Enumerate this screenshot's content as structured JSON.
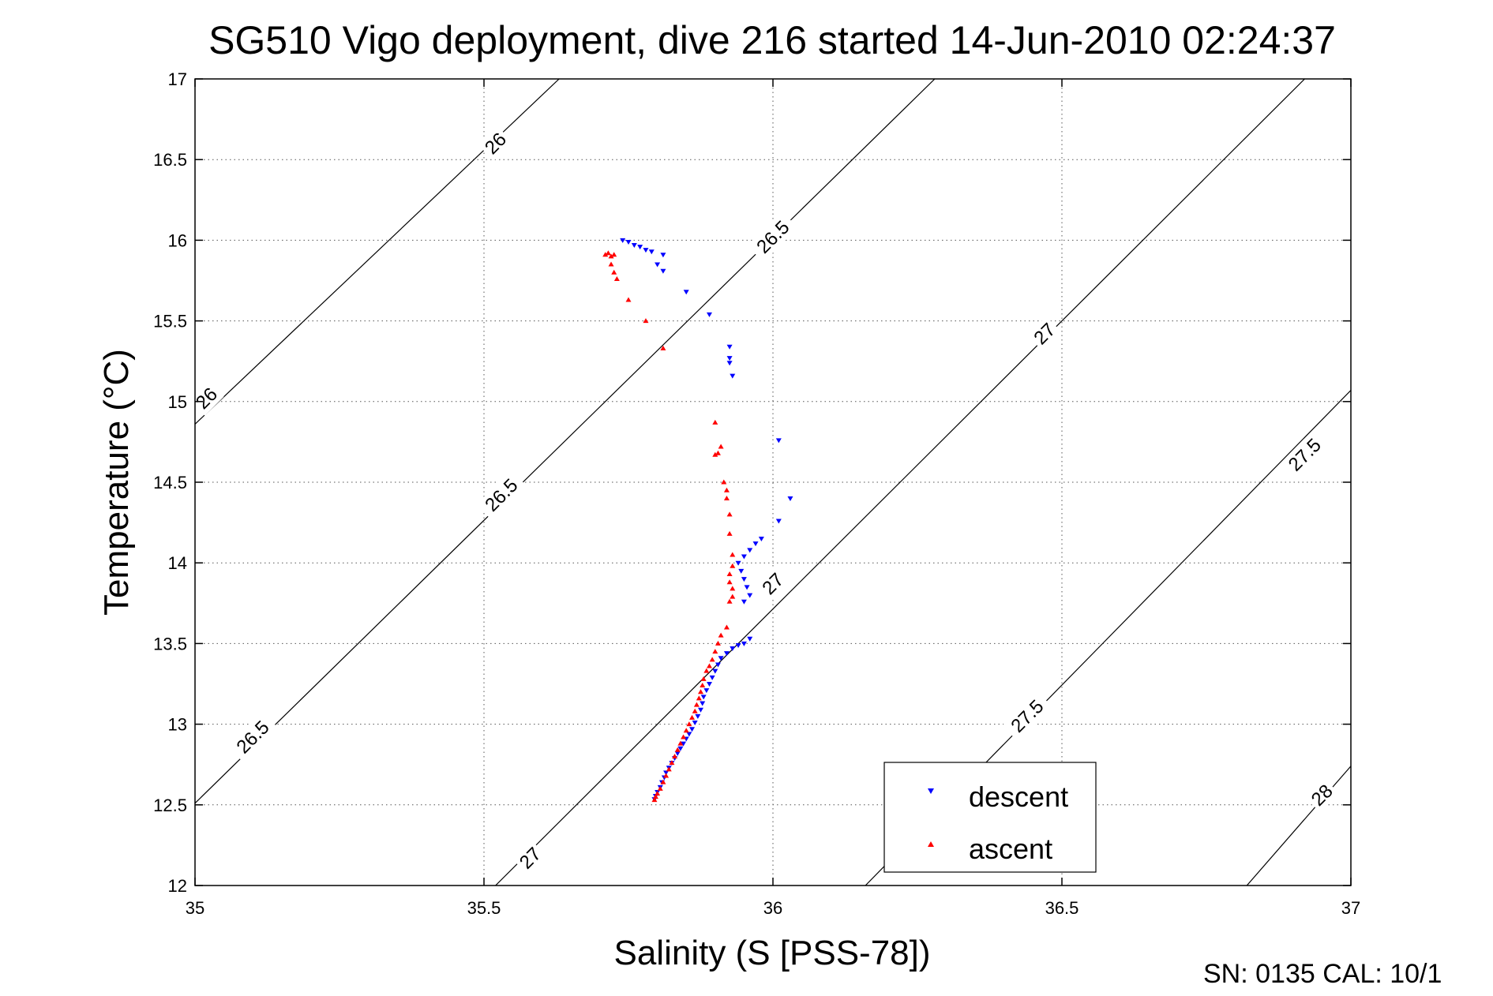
{
  "chart_data": {
    "type": "scatter",
    "title": "SG510 Vigo deployment, dive 216 started 14-Jun-2010 02:24:37",
    "xlabel": "Salinity (S [PSS-78])",
    "ylabel": "Temperature (°C)",
    "xlim": [
      35,
      37
    ],
    "ylim": [
      12,
      17
    ],
    "grid": true,
    "legend_position": "bottom-right",
    "xticks": [
      35,
      35.5,
      36,
      36.5,
      37
    ],
    "xtick_labels": [
      "35",
      "35.5",
      "36",
      "36.5",
      "37"
    ],
    "yticks": [
      12,
      12.5,
      13,
      13.5,
      14,
      14.5,
      15,
      15.5,
      16,
      16.5,
      17
    ],
    "ytick_labels": [
      "12",
      "12.5",
      "13",
      "13.5",
      "14",
      "14.5",
      "15",
      "15.5",
      "16",
      "16.5",
      "17"
    ],
    "density_contours": [
      {
        "level": 26,
        "lines": [
          [
            35.0,
            14.86,
            35.63,
            17.0
          ]
        ]
      },
      {
        "level": 26.5,
        "lines": [
          [
            35.0,
            12.51,
            36.28,
            17.0
          ]
        ]
      },
      {
        "level": 27,
        "lines": [
          [
            35.52,
            12.0,
            36.92,
            17.0
          ]
        ]
      },
      {
        "level": 27.5,
        "lines": [
          [
            36.16,
            12.0,
            37.0,
            15.07
          ]
        ]
      },
      {
        "level": 28,
        "lines": [
          [
            36.82,
            12.0,
            37.0,
            12.74
          ]
        ]
      }
    ],
    "contour_labels": [
      {
        "text": "26",
        "s": 35.02,
        "t": 15.02
      },
      {
        "text": "26",
        "s": 35.52,
        "t": 16.6
      },
      {
        "text": "26.5",
        "s": 35.1,
        "t": 12.92
      },
      {
        "text": "26.5",
        "s": 35.53,
        "t": 14.42
      },
      {
        "text": "26.5",
        "s": 36.0,
        "t": 16.02
      },
      {
        "text": "27",
        "s": 35.58,
        "t": 12.17
      },
      {
        "text": "27",
        "s": 36.0,
        "t": 13.87
      },
      {
        "text": "27",
        "s": 36.47,
        "t": 15.42
      },
      {
        "text": "27.5",
        "s": 36.44,
        "t": 13.05
      },
      {
        "text": "27.5",
        "s": 36.92,
        "t": 14.67
      },
      {
        "text": "28",
        "s": 36.95,
        "t": 12.56
      }
    ],
    "series": [
      {
        "name": "descent",
        "color": "#0000ff",
        "marker": "triangle-down",
        "points": [
          [
            35.74,
            16.0
          ],
          [
            35.75,
            15.99
          ],
          [
            35.76,
            15.97
          ],
          [
            35.77,
            15.96
          ],
          [
            35.78,
            15.94
          ],
          [
            35.79,
            15.93
          ],
          [
            35.81,
            15.91
          ],
          [
            35.8,
            15.85
          ],
          [
            35.81,
            15.81
          ],
          [
            35.85,
            15.68
          ],
          [
            35.89,
            15.54
          ],
          [
            35.925,
            15.34
          ],
          [
            35.925,
            15.27
          ],
          [
            35.925,
            15.24
          ],
          [
            35.93,
            15.16
          ],
          [
            36.01,
            14.76
          ],
          [
            36.03,
            14.4
          ],
          [
            36.01,
            14.26
          ],
          [
            35.98,
            14.15
          ],
          [
            35.97,
            14.12
          ],
          [
            35.96,
            14.08
          ],
          [
            35.95,
            14.04
          ],
          [
            35.94,
            14.0
          ],
          [
            35.945,
            13.95
          ],
          [
            35.95,
            13.9
          ],
          [
            35.955,
            13.85
          ],
          [
            35.96,
            13.8
          ],
          [
            35.95,
            13.76
          ],
          [
            35.96,
            13.53
          ],
          [
            35.95,
            13.5
          ],
          [
            35.94,
            13.49
          ],
          [
            35.93,
            13.47
          ],
          [
            35.92,
            13.44
          ],
          [
            35.91,
            13.41
          ],
          [
            35.905,
            13.37
          ],
          [
            35.9,
            13.33
          ],
          [
            35.895,
            13.29
          ],
          [
            35.89,
            13.25
          ],
          [
            35.885,
            13.21
          ],
          [
            35.88,
            13.17
          ],
          [
            35.878,
            13.13
          ],
          [
            35.875,
            13.09
          ],
          [
            35.87,
            13.05
          ],
          [
            35.865,
            13.01
          ],
          [
            35.86,
            12.97
          ],
          [
            35.855,
            12.94
          ],
          [
            35.85,
            12.91
          ],
          [
            35.845,
            12.88
          ],
          [
            35.84,
            12.85
          ],
          [
            35.835,
            12.82
          ],
          [
            35.83,
            12.79
          ],
          [
            35.825,
            12.76
          ],
          [
            35.82,
            12.73
          ],
          [
            35.815,
            12.7
          ],
          [
            35.812,
            12.67
          ],
          [
            35.808,
            12.64
          ],
          [
            35.805,
            12.61
          ],
          [
            35.8,
            12.58
          ],
          [
            35.797,
            12.555
          ],
          [
            35.795,
            12.535
          ]
        ]
      },
      {
        "name": "ascent",
        "color": "#ff0000",
        "marker": "triangle-up",
        "points": [
          [
            35.71,
            15.91
          ],
          [
            35.72,
            15.9
          ],
          [
            35.715,
            15.92
          ],
          [
            35.725,
            15.91
          ],
          [
            35.72,
            15.85
          ],
          [
            35.725,
            15.8
          ],
          [
            35.73,
            15.76
          ],
          [
            35.75,
            15.63
          ],
          [
            35.78,
            15.5
          ],
          [
            35.81,
            15.33
          ],
          [
            35.9,
            14.87
          ],
          [
            35.91,
            14.72
          ],
          [
            35.905,
            14.68
          ],
          [
            35.9,
            14.67
          ],
          [
            35.915,
            14.5
          ],
          [
            35.92,
            14.45
          ],
          [
            35.92,
            14.4
          ],
          [
            35.925,
            14.3
          ],
          [
            35.925,
            14.18
          ],
          [
            35.93,
            14.05
          ],
          [
            35.93,
            13.98
          ],
          [
            35.925,
            13.93
          ],
          [
            35.925,
            13.88
          ],
          [
            35.93,
            13.84
          ],
          [
            35.93,
            13.79
          ],
          [
            35.925,
            13.76
          ],
          [
            35.92,
            13.6
          ],
          [
            35.91,
            13.55
          ],
          [
            35.905,
            13.5
          ],
          [
            35.9,
            13.45
          ],
          [
            35.895,
            13.4
          ],
          [
            35.89,
            13.36
          ],
          [
            35.885,
            13.33
          ],
          [
            35.88,
            13.28
          ],
          [
            35.878,
            13.24
          ],
          [
            35.875,
            13.2
          ],
          [
            35.872,
            13.16
          ],
          [
            35.868,
            13.12
          ],
          [
            35.865,
            13.08
          ],
          [
            35.86,
            13.04
          ],
          [
            35.855,
            13.0
          ],
          [
            35.85,
            12.96
          ],
          [
            35.845,
            12.92
          ],
          [
            35.84,
            12.88
          ],
          [
            35.835,
            12.84
          ],
          [
            35.83,
            12.8
          ],
          [
            35.825,
            12.76
          ],
          [
            35.82,
            12.72
          ],
          [
            35.815,
            12.68
          ],
          [
            35.81,
            12.64
          ],
          [
            35.805,
            12.6
          ],
          [
            35.8,
            12.57
          ],
          [
            35.797,
            12.55
          ],
          [
            35.795,
            12.53
          ]
        ]
      }
    ]
  },
  "footer": {
    "serial_cal": "SN: 0135  CAL: 10/1"
  }
}
